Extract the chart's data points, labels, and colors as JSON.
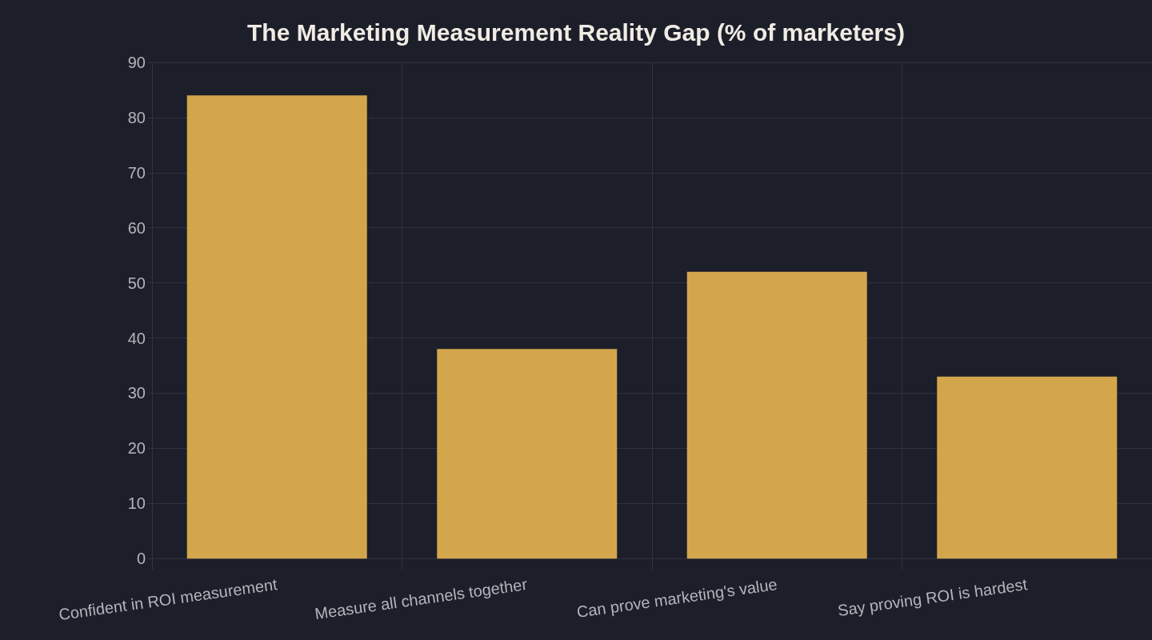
{
  "chart_data": {
    "type": "bar",
    "title": "The Marketing Measurement Reality Gap (% of marketers)",
    "categories": [
      "Confident in ROI measurement",
      "Measure all channels together",
      "Can prove marketing's value",
      "Say proving ROI is hardest"
    ],
    "values": [
      84,
      38,
      52,
      33
    ],
    "color": "#d4a64c",
    "ylim": [
      -2,
      90
    ],
    "yticks": [
      0,
      10,
      20,
      30,
      40,
      50,
      60,
      70,
      80,
      90
    ],
    "grid": true
  }
}
